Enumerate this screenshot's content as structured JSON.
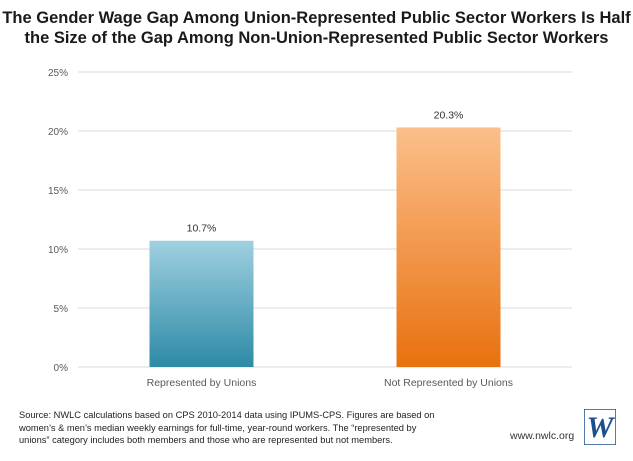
{
  "title": {
    "line1": "The Gender Wage Gap Among Union-Represented Public Sector Workers Is Half",
    "line2": "the Size of the Gap Among Non-Union-Represented Public Sector Workers"
  },
  "chart_data": {
    "type": "bar",
    "title": "The Gender Wage Gap Among Union-Represented Public Sector Workers Is Half the Size of the Gap Among Non-Union-Represented Public Sector Workers",
    "categories": [
      "Represented by Unions",
      "Not Represented by Unions"
    ],
    "values": [
      10.7,
      20.3
    ],
    "value_labels": [
      "10.7%",
      "20.3%"
    ],
    "ylim": [
      0,
      25
    ],
    "yticks": [
      0,
      5,
      10,
      15,
      20,
      25
    ],
    "ytick_labels": [
      "0%",
      "5%",
      "10%",
      "15%",
      "20%",
      "25%"
    ],
    "grid": true,
    "legend": "none",
    "colors": {
      "Represented by Unions": {
        "top": "#9fd0e0",
        "bottom": "#2e8aa6"
      },
      "Not Represented by Unions": {
        "top": "#fbbf8a",
        "bottom": "#e8710f"
      }
    }
  },
  "footer": {
    "source_lines": [
      "Source: NWLC calculations based on CPS 2010-2014 data using IPUMS-CPS. Figures are based on",
      "women’s & men’s median weekly earnings for full-time, year-round workers. The “represented by",
      "unions” category includes both members and those who are represented but not members."
    ],
    "site": "www.nwlc.org",
    "logo_mark": "W"
  },
  "colors": {
    "grid": "#d9d9d9",
    "axis_text": "#595959",
    "logo_bg": "#ffffff",
    "logo_fg": "#1f4e8c"
  }
}
